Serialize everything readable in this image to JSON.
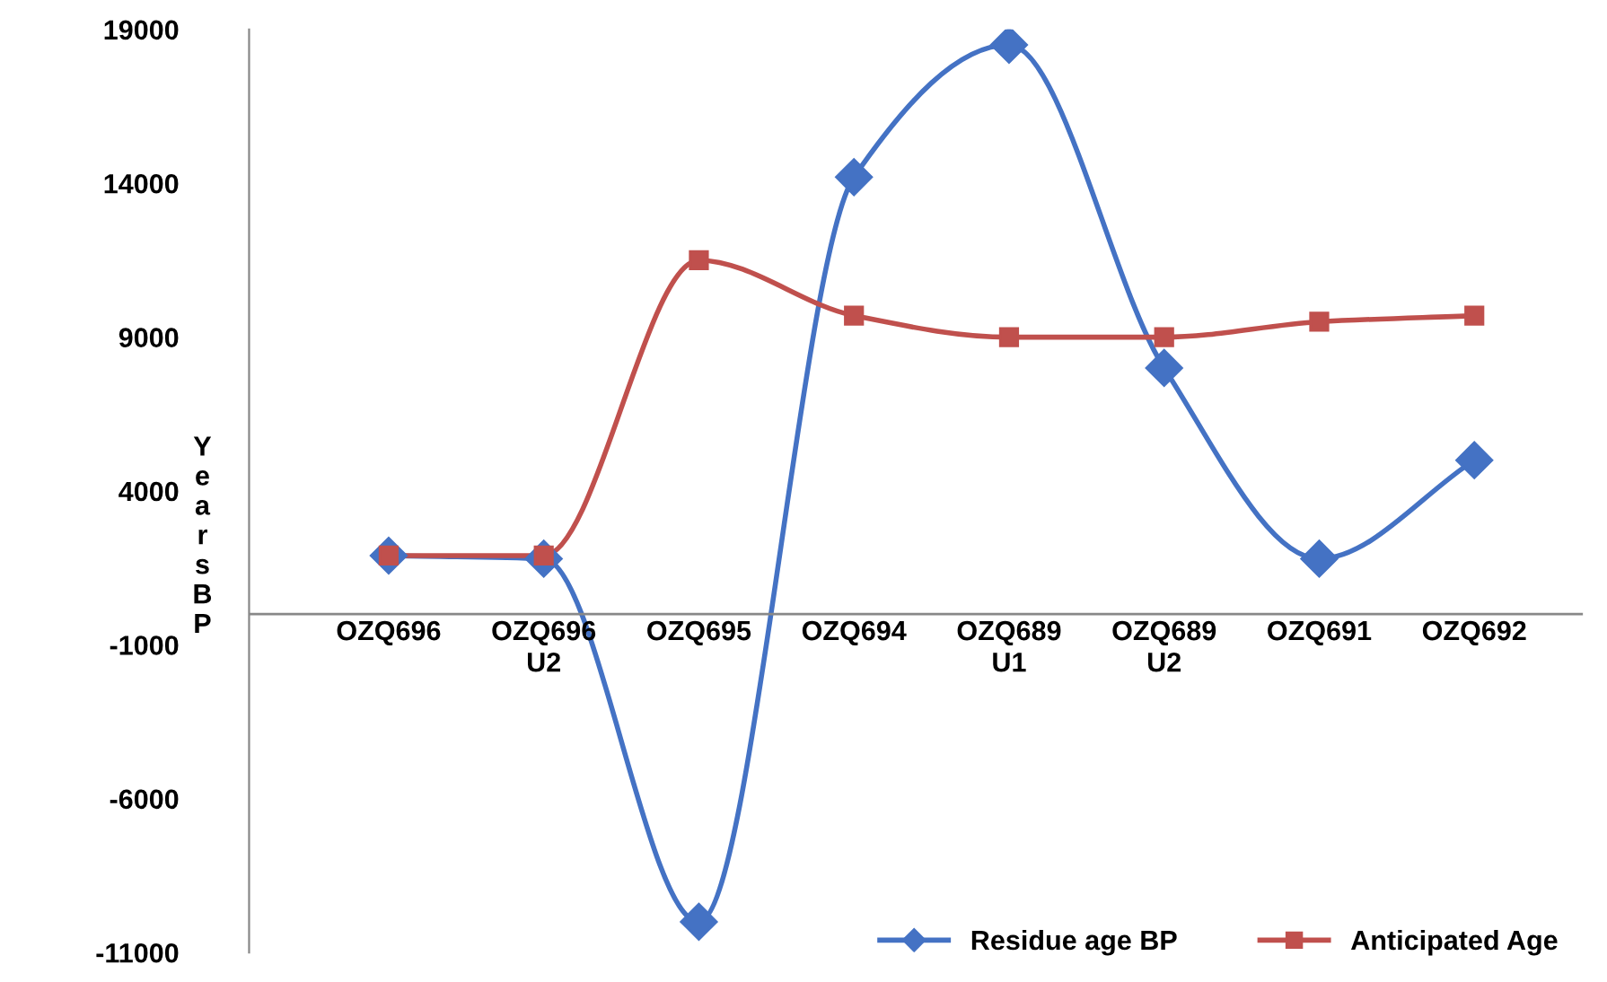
{
  "chart_data": {
    "type": "line",
    "ylabel": "Years BP",
    "categories": [
      "OZQ696",
      "OZQ696\nU2",
      "OZQ695",
      "OZQ694",
      "OZQ689\nU1",
      "OZQ689\nU2",
      "OZQ691",
      "OZQ692"
    ],
    "series": [
      {
        "name": "Residue age BP",
        "color": "#4472c4",
        "marker": "diamond",
        "values": [
          1900,
          1800,
          -10000,
          14200,
          18500,
          8000,
          1800,
          5000
        ]
      },
      {
        "name": "Anticipated Age",
        "color": "#c0504d",
        "marker": "square",
        "values": [
          1900,
          1900,
          11500,
          9700,
          9000,
          9000,
          9500,
          9700
        ]
      }
    ],
    "ylim": [
      -11000,
      19000
    ],
    "yticks": [
      -11000,
      -6000,
      -1000,
      4000,
      9000,
      14000,
      19000
    ],
    "grid": false,
    "legend": "bottom right",
    "line_style": "solid"
  }
}
